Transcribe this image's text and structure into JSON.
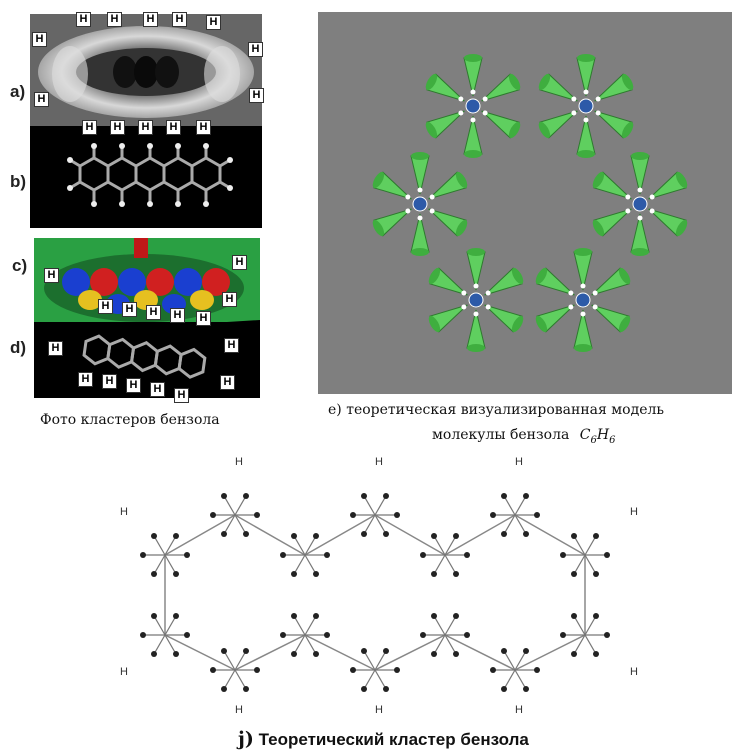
{
  "labels": {
    "a": "a)",
    "b": "b)",
    "c": "c)",
    "d": "d)"
  },
  "h_atom": "H",
  "caption_photo": "Фото кластеров бензола",
  "caption_e_line1": "e) теоретическая визуализированная модель",
  "caption_e_line2": "молекулы бензола",
  "formula": {
    "c": "C",
    "c_sub": "6",
    "h": "H",
    "h_sub": "6"
  },
  "caption_j_letter": "j)",
  "caption_j_text": " Теоретический кластер бензола",
  "colors": {
    "panel_e_bg": "#7f7f7f",
    "cone_green": "#5fcf5f",
    "ring_blue": "#2d5aa8",
    "dark_bg": "#000000"
  }
}
